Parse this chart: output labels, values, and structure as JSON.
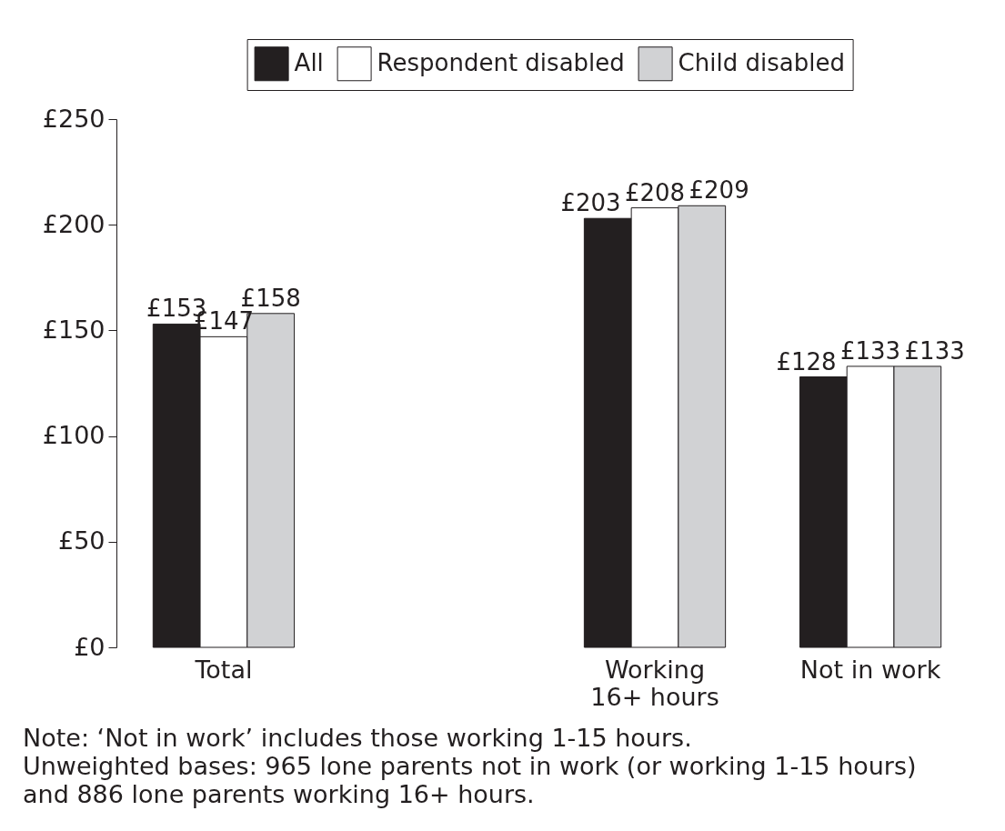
{
  "chart_data": {
    "type": "bar",
    "categories": [
      "Total",
      null,
      "Working 16+ hours",
      "Not in work"
    ],
    "series": [
      {
        "name": "All",
        "color": "#231f20",
        "values": [
          153,
          null,
          203,
          128
        ],
        "value_labels": [
          "£153",
          null,
          "£203",
          "£128"
        ]
      },
      {
        "name": "Respondent disabled",
        "color": "#ffffff",
        "values": [
          147,
          null,
          208,
          133
        ],
        "value_labels": [
          "£147",
          null,
          "£208",
          "£133"
        ]
      },
      {
        "name": "Child disabled",
        "color": "#d1d2d4",
        "values": [
          158,
          null,
          209,
          133
        ],
        "value_labels": [
          "£158",
          null,
          "£209",
          "£133"
        ]
      }
    ],
    "ylim": [
      0,
      250
    ],
    "yticks": [
      {
        "value": 0,
        "label": "£0"
      },
      {
        "value": 50,
        "label": "£50"
      },
      {
        "value": 100,
        "label": "£100"
      },
      {
        "value": 150,
        "label": "£150"
      },
      {
        "value": 200,
        "label": "£200"
      },
      {
        "value": 250,
        "label": "£250"
      }
    ],
    "legend": "top",
    "annotations": [
      "Note: ‘Not in work’ includes those working 1-15 hours.",
      "Unweighted bases: 965 lone parents not in work (or working 1-15 hours) and 886 lone parents working 16+ hours."
    ]
  }
}
